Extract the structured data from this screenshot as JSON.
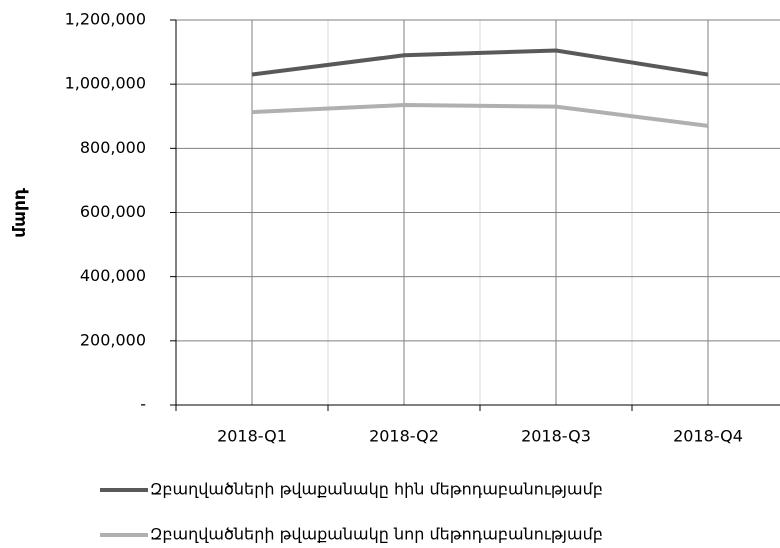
{
  "chart_data": {
    "type": "line",
    "y_label": "մարդ",
    "categories": [
      "2018-Q1",
      "2018-Q2",
      "2018-Q3",
      "2018-Q4"
    ],
    "series": [
      {
        "name": "Զբաղվածների թվաքանակը հին մեթոդաբանությամբ",
        "color": "#595959",
        "values": [
          1030000,
          1090000,
          1105000,
          1030000
        ]
      },
      {
        "name": "Զբաղվածների թվաքանակը նոր մեթոդաբանությամբ",
        "color": "#b0b0b0",
        "values": [
          913000,
          935000,
          930000,
          870000
        ]
      }
    ],
    "ylim": [
      0,
      1200000
    ],
    "yticks": [
      {
        "value": 0,
        "label": "-"
      },
      {
        "value": 200000,
        "label": "200,000"
      },
      {
        "value": 400000,
        "label": "400,000"
      },
      {
        "value": 600000,
        "label": "600,000"
      },
      {
        "value": 800000,
        "label": "800,000"
      },
      {
        "value": 1000000,
        "label": "1,000,000"
      },
      {
        "value": 1200000,
        "label": "1,200,000"
      }
    ],
    "grid": true
  }
}
